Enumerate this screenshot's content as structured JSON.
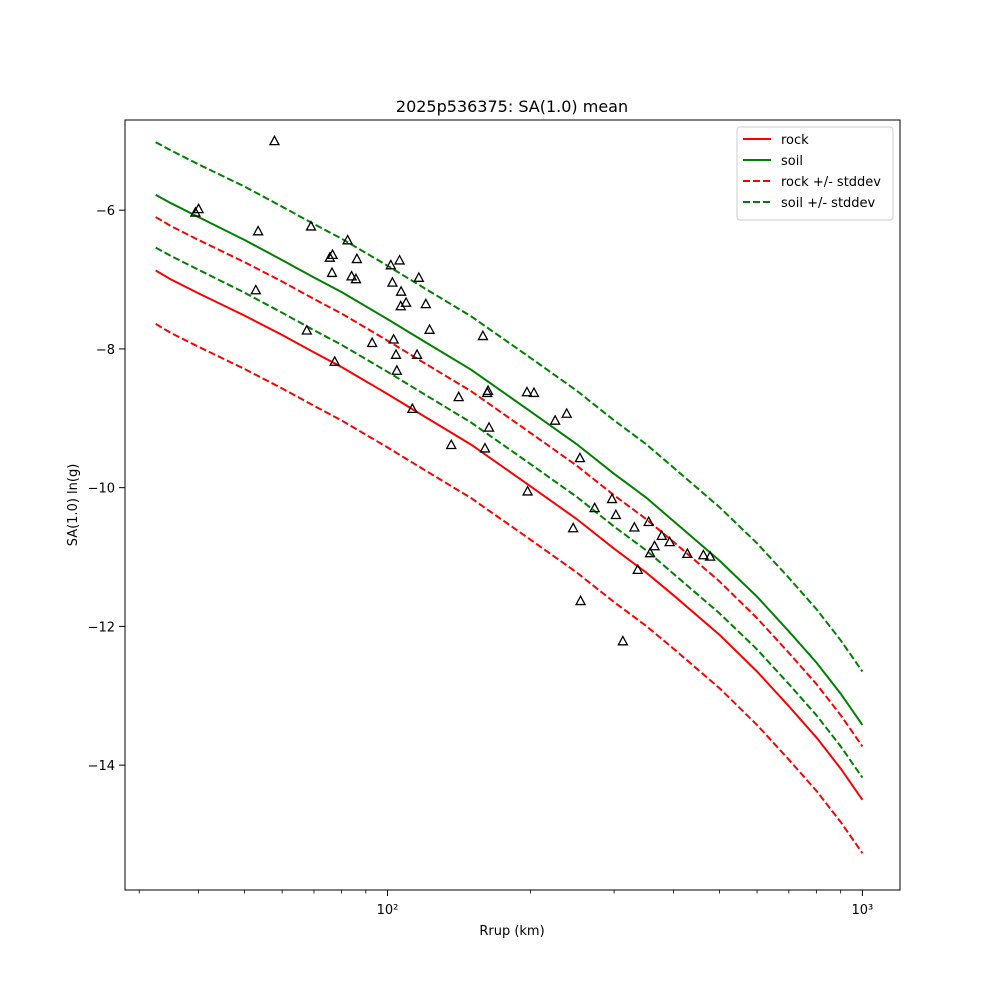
{
  "chart_data": {
    "type": "line",
    "title": "2025p536375: SA(1.0) mean",
    "xlabel": "Rrup (km)",
    "ylabel": "SA(1.0) ln(g)",
    "x_scale": "log",
    "xlim": [
      28,
      1200
    ],
    "ylim": [
      -15.8,
      -4.7
    ],
    "x_ticks": [
      {
        "value": 100,
        "label": "10²"
      },
      {
        "value": 1000,
        "label": "10³"
      }
    ],
    "y_ticks": [
      {
        "value": -6,
        "label": "−6"
      },
      {
        "value": -8,
        "label": "−8"
      },
      {
        "value": -10,
        "label": "−10"
      },
      {
        "value": -12,
        "label": "−12"
      },
      {
        "value": -14,
        "label": "−14"
      }
    ],
    "grid": false,
    "legend_position": "top-right",
    "series": [
      {
        "name": "rock",
        "color": "#ff0000",
        "style": "solid",
        "x": [
          32.5,
          35,
          40,
          50,
          60,
          70,
          80,
          100,
          120,
          150,
          200,
          250,
          300,
          350,
          400,
          500,
          600,
          700,
          800,
          900,
          1000
        ],
        "y": [
          -6.87,
          -7.0,
          -7.2,
          -7.52,
          -7.8,
          -8.05,
          -8.26,
          -8.65,
          -8.98,
          -9.38,
          -9.98,
          -10.45,
          -10.88,
          -11.22,
          -11.55,
          -12.12,
          -12.65,
          -13.15,
          -13.6,
          -14.05,
          -14.5
        ]
      },
      {
        "name": "soil",
        "color": "#008000",
        "style": "solid",
        "x": [
          32.5,
          35,
          40,
          50,
          60,
          70,
          80,
          100,
          120,
          150,
          200,
          250,
          300,
          350,
          400,
          500,
          600,
          700,
          800,
          900,
          1000
        ],
        "y": [
          -5.78,
          -5.9,
          -6.1,
          -6.43,
          -6.72,
          -6.97,
          -7.18,
          -7.57,
          -7.9,
          -8.3,
          -8.9,
          -9.37,
          -9.8,
          -10.14,
          -10.48,
          -11.05,
          -11.57,
          -12.07,
          -12.52,
          -12.97,
          -13.42
        ]
      },
      {
        "name": "rock +/- stddev",
        "color": "#ff0000",
        "style": "dashed",
        "x": [
          32.5,
          35,
          40,
          50,
          60,
          70,
          80,
          100,
          120,
          150,
          200,
          250,
          300,
          350,
          400,
          500,
          600,
          700,
          800,
          900,
          1000
        ],
        "y": [
          -6.1,
          -6.23,
          -6.43,
          -6.75,
          -7.03,
          -7.28,
          -7.49,
          -7.88,
          -8.21,
          -8.61,
          -9.21,
          -9.68,
          -10.11,
          -10.45,
          -10.78,
          -11.35,
          -11.88,
          -12.38,
          -12.83,
          -13.28,
          -13.73
        ]
      },
      {
        "name": "",
        "color": "#ff0000",
        "style": "dashed",
        "x": [
          32.5,
          35,
          40,
          50,
          60,
          70,
          80,
          100,
          120,
          150,
          200,
          250,
          300,
          350,
          400,
          500,
          600,
          700,
          800,
          900,
          1000
        ],
        "y": [
          -7.64,
          -7.77,
          -7.97,
          -8.29,
          -8.57,
          -8.82,
          -9.03,
          -9.42,
          -9.75,
          -10.15,
          -10.75,
          -11.22,
          -11.65,
          -11.99,
          -12.32,
          -12.89,
          -13.42,
          -13.92,
          -14.37,
          -14.82,
          -15.27
        ]
      },
      {
        "name": "soil +/- stddev",
        "color": "#008000",
        "style": "dashed",
        "x": [
          32.5,
          35,
          40,
          50,
          60,
          70,
          80,
          100,
          120,
          150,
          200,
          250,
          300,
          350,
          400,
          500,
          600,
          700,
          800,
          900,
          1000
        ],
        "y": [
          -5.02,
          -5.14,
          -5.34,
          -5.66,
          -5.95,
          -6.2,
          -6.41,
          -6.8,
          -7.13,
          -7.53,
          -8.13,
          -8.6,
          -9.03,
          -9.37,
          -9.71,
          -10.28,
          -10.8,
          -11.3,
          -11.75,
          -12.2,
          -12.65
        ]
      },
      {
        "name": "",
        "color": "#008000",
        "style": "dashed",
        "x": [
          32.5,
          35,
          40,
          50,
          60,
          70,
          80,
          100,
          120,
          150,
          200,
          250,
          300,
          350,
          400,
          500,
          600,
          700,
          800,
          900,
          1000
        ],
        "y": [
          -6.54,
          -6.66,
          -6.86,
          -7.19,
          -7.48,
          -7.73,
          -7.94,
          -8.33,
          -8.66,
          -9.06,
          -9.66,
          -10.13,
          -10.56,
          -10.9,
          -11.24,
          -11.81,
          -12.33,
          -12.83,
          -13.28,
          -13.73,
          -14.18
        ]
      }
    ],
    "observations": {
      "marker": "triangle",
      "color": "#000000",
      "x": [
        39.4,
        40.0,
        52.8,
        53.4,
        57.8,
        67.6,
        69.0,
        75.6,
        76.4,
        76.6,
        77.4,
        82.4,
        84.0,
        85.8,
        86.2,
        92.8,
        101.6,
        102.4,
        103.0,
        104.2,
        104.6,
        106.0,
        106.6,
        106.8,
        109.4,
        112.8,
        115.4,
        116.4,
        120.4,
        122.6,
        136.2,
        141.2,
        158.8,
        160.4,
        162.2,
        162.8,
        163.6,
        196.6,
        197.2,
        203.4,
        225.4,
        238.4,
        246.0,
        254.2,
        255.0,
        273.0,
        297.0,
        302.6,
        313.0,
        331.0,
        336.4,
        354.8,
        357.2,
        365.0,
        378.0,
        392.8,
        428.0,
        462.6,
        477.8
      ],
      "y": [
        -6.03,
        -5.98,
        -7.15,
        -6.3,
        -5.0,
        -7.73,
        -6.23,
        -6.68,
        -6.9,
        -6.64,
        -8.18,
        -6.43,
        -6.95,
        -6.99,
        -6.7,
        -7.91,
        -6.79,
        -7.04,
        -7.86,
        -8.08,
        -8.31,
        -6.72,
        -7.38,
        -7.17,
        -7.33,
        -8.86,
        -8.08,
        -6.97,
        -7.35,
        -7.72,
        -9.38,
        -8.69,
        -7.81,
        -9.43,
        -8.63,
        -8.6,
        -9.13,
        -8.62,
        -10.05,
        -8.63,
        -9.03,
        -8.93,
        -10.58,
        -9.57,
        -11.63,
        -10.29,
        -10.16,
        -10.39,
        -12.21,
        -10.57,
        -11.18,
        -10.49,
        -10.94,
        -10.84,
        -10.69,
        -10.78,
        -10.95,
        -10.97,
        -10.99
      ]
    }
  }
}
